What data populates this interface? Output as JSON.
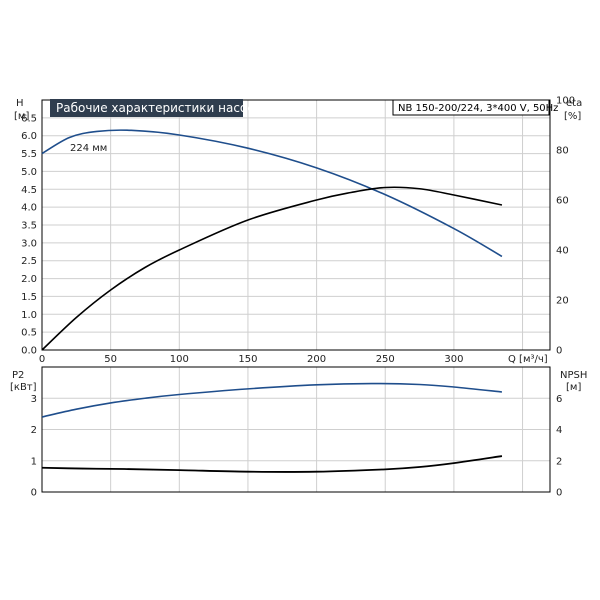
{
  "chart_data": [
    {
      "type": "line",
      "title": "Рабочие характеристики насоса",
      "model": "NB 150-200/224, 3*400 V, 50Hz",
      "xlabel": "Q [м³/ч]",
      "xlim": [
        0,
        370
      ],
      "x_ticks": [
        0,
        50,
        100,
        150,
        200,
        250,
        300
      ],
      "left_axis": {
        "label_top": "H",
        "label_unit": "[м]",
        "ylim": [
          0,
          7.0
        ],
        "ticks": [
          0.0,
          0.5,
          1.0,
          1.5,
          2.0,
          2.5,
          3.0,
          3.5,
          4.0,
          4.5,
          5.0,
          5.5,
          6.0,
          6.5
        ]
      },
      "right_axis": {
        "label_top": "eta",
        "label_unit": "[%]",
        "ylim": [
          0,
          100
        ],
        "ticks": [
          0,
          20,
          40,
          60,
          80,
          100
        ]
      },
      "annotation": "224 мм",
      "grid": true,
      "series": [
        {
          "axis": "left",
          "color": "#1f4e8c",
          "x": [
            0,
            20,
            40,
            65,
            100,
            150,
            200,
            250,
            300,
            335
          ],
          "y": [
            5.5,
            5.95,
            6.12,
            6.15,
            6.02,
            5.65,
            5.1,
            4.35,
            3.4,
            2.62
          ]
        },
        {
          "axis": "right",
          "color": "#000000",
          "x": [
            0,
            25,
            50,
            75,
            100,
            150,
            200,
            225,
            250,
            275,
            300,
            335
          ],
          "y": [
            0,
            13,
            24,
            33,
            40,
            52,
            60,
            63,
            65,
            64.5,
            62,
            58
          ]
        }
      ]
    },
    {
      "type": "line",
      "xlim": [
        0,
        370
      ],
      "left_axis": {
        "label_top": "P2",
        "label_unit": "[кВт]",
        "ylim": [
          0,
          4.0
        ],
        "ticks": [
          0,
          1,
          2,
          3
        ]
      },
      "right_axis": {
        "label_top": "NPSH",
        "label_unit": "[м]",
        "ylim": [
          0,
          8.0
        ],
        "ticks": [
          0,
          2,
          4,
          6
        ]
      },
      "grid": true,
      "series": [
        {
          "axis": "left",
          "color": "#1f4e8c",
          "x": [
            0,
            25,
            50,
            75,
            100,
            150,
            200,
            240,
            275,
            300,
            335
          ],
          "y": [
            2.4,
            2.65,
            2.85,
            3.0,
            3.12,
            3.3,
            3.43,
            3.47,
            3.44,
            3.36,
            3.2
          ]
        },
        {
          "axis": "right",
          "color": "#000000",
          "x": [
            0,
            30,
            60,
            100,
            150,
            200,
            250,
            275,
            300,
            335
          ],
          "y": [
            1.55,
            1.5,
            1.47,
            1.4,
            1.3,
            1.3,
            1.45,
            1.6,
            1.85,
            2.3
          ]
        }
      ]
    }
  ]
}
